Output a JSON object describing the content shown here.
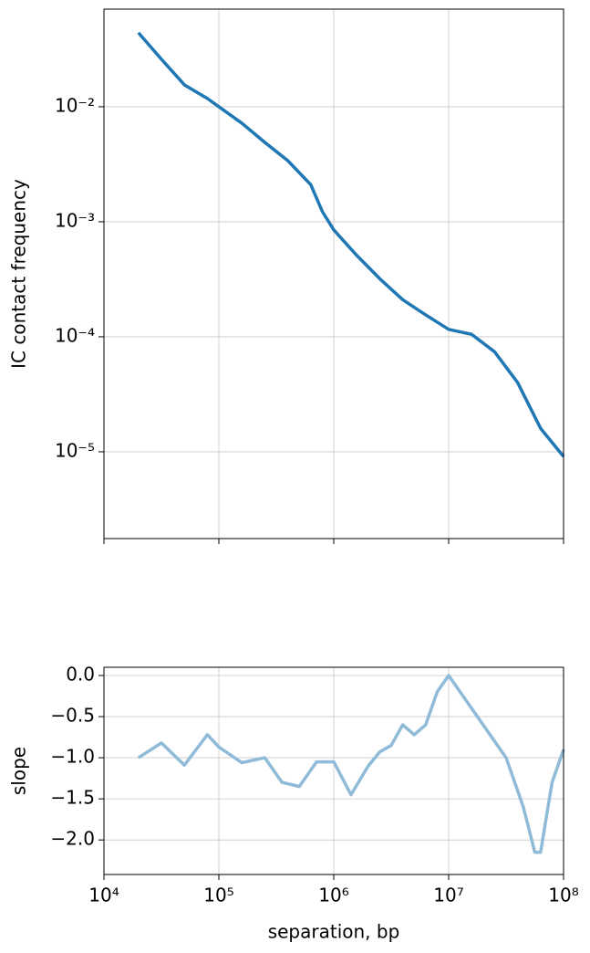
{
  "chart_data": [
    {
      "type": "line",
      "xlog": true,
      "ylog": true,
      "grid": true,
      "color": "#1f77b4",
      "ylabel": "IC contact frequency",
      "x": [
        19953,
        31623,
        50119,
        79433,
        100000,
        158489,
        251189,
        398107,
        630957,
        794328,
        1000000,
        1584893,
        2511886,
        3981072,
        6309573,
        10000000,
        15848932,
        25118864,
        39810717,
        63095734,
        100000000
      ],
      "values": [
        0.044,
        0.0259,
        0.0155,
        0.0118,
        0.01,
        0.0072,
        0.0049,
        0.0034,
        0.0021,
        0.00123,
        0.00085,
        0.00051,
        0.00032,
        0.00021,
        0.000155,
        0.000116,
        0.000105,
        7.4e-05,
        4e-05,
        1.6e-05,
        9.1e-06
      ],
      "xlim": [
        10000,
        100000000
      ],
      "xticks": [
        10000,
        100000,
        1000000,
        10000000,
        100000000
      ],
      "show_xtick_labels": false,
      "ylim": [
        1.76e-06,
        0.0706
      ],
      "yticks": [
        {
          "value": 0.01,
          "label": "10⁻²"
        },
        {
          "value": 0.001,
          "label": "10⁻³"
        },
        {
          "value": 0.0001,
          "label": "10⁻⁴"
        },
        {
          "value": 1e-05,
          "label": "10⁻⁵"
        }
      ]
    },
    {
      "type": "line",
      "xlog": true,
      "ylog": false,
      "grid": true,
      "color": "#8fbbd9",
      "ylabel": "slope",
      "xlabel": "separation, bp",
      "x": [
        19953,
        31623,
        50119,
        79433,
        100000,
        158489,
        251189,
        354813,
        501187,
        707946,
        1000000,
        1412538,
        1995262,
        2511886,
        3162278,
        3981072,
        5011872,
        6309573,
        7943282,
        10000000,
        14125375,
        19952623,
        31622777,
        44668359,
        56234133,
        63095734,
        79432823,
        100000000
      ],
      "values": [
        -1.0,
        -0.82,
        -1.09,
        -0.72,
        -0.87,
        -1.06,
        -1.0,
        -1.3,
        -1.35,
        -1.05,
        -1.05,
        -1.45,
        -1.1,
        -0.93,
        -0.85,
        -0.6,
        -0.72,
        -0.6,
        -0.2,
        0.0,
        -0.3,
        -0.6,
        -1.0,
        -1.6,
        -2.15,
        -2.15,
        -1.3,
        -0.9
      ],
      "xlim": [
        10000,
        100000000
      ],
      "xticks": [
        {
          "value": 10000,
          "label": "10⁴"
        },
        {
          "value": 100000,
          "label": "10⁵"
        },
        {
          "value": 1000000,
          "label": "10⁶"
        },
        {
          "value": 10000000,
          "label": "10⁷"
        },
        {
          "value": 100000000,
          "label": "10⁸"
        }
      ],
      "show_xtick_labels": true,
      "ylim": [
        -2.42,
        0.1
      ],
      "yticks": [
        {
          "value": 0,
          "label": "0.0"
        },
        {
          "value": -0.5,
          "label": "−0.5"
        },
        {
          "value": -1.0,
          "label": "−1.0"
        },
        {
          "value": -1.5,
          "label": "−1.5"
        },
        {
          "value": -2.0,
          "label": "−2.0"
        }
      ]
    }
  ]
}
